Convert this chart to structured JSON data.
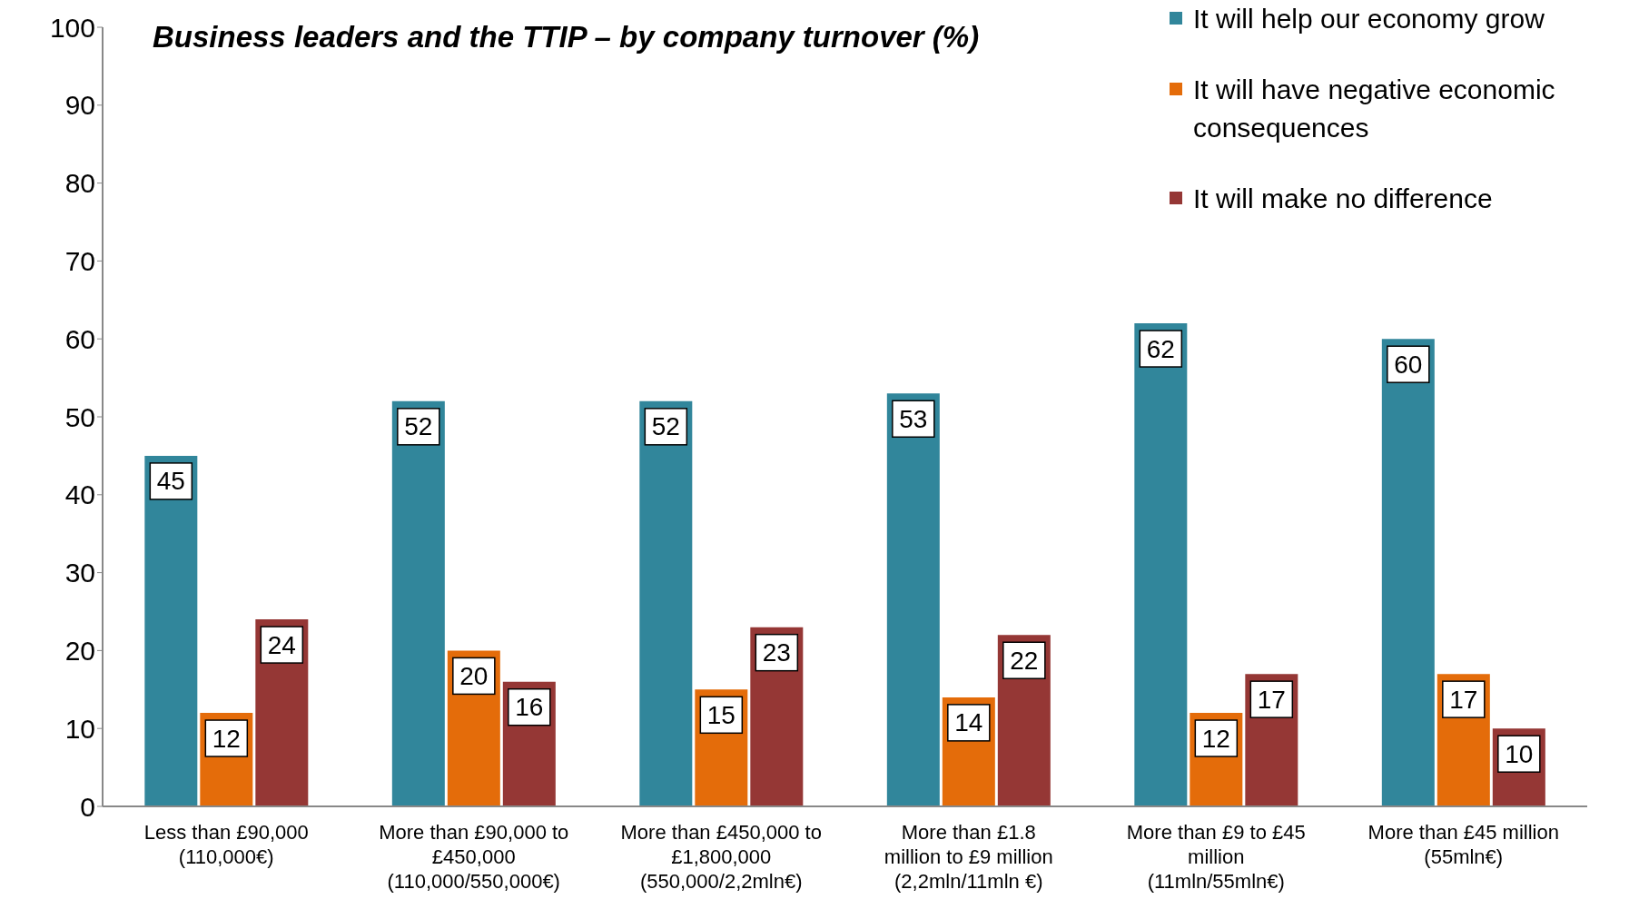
{
  "chart_data": {
    "type": "bar",
    "title": "Business leaders and the TTIP – by company turnover (%)",
    "categories": [
      "Less than £90,000 (110,000€)",
      "More than £90,000 to £450,000 (110,000/550,000€)",
      "More than £450,000 to £1,800,000 (550,000/2,2mln€)",
      "More than £1.8 million to £9 million (2,2mln/11mln €)",
      "More than £9 to £45 million (11mln/55mln€)",
      "More than £45 million (55mln€)"
    ],
    "series": [
      {
        "name": "It will help our economy grow",
        "color": "#31869b",
        "values": [
          45,
          52,
          52,
          53,
          62,
          60
        ]
      },
      {
        "name": "It will have negative economic consequences",
        "color": "#e46c0a",
        "values": [
          12,
          20,
          15,
          14,
          12,
          17
        ]
      },
      {
        "name": "It will make no difference",
        "color": "#953735",
        "values": [
          24,
          16,
          23,
          22,
          17,
          10
        ]
      }
    ],
    "ylim": [
      0,
      100
    ],
    "yticks": [
      0,
      10,
      20,
      30,
      40,
      50,
      60,
      70,
      80,
      90,
      100
    ],
    "grid": false,
    "legend": "top right",
    "data_labels": true
  }
}
